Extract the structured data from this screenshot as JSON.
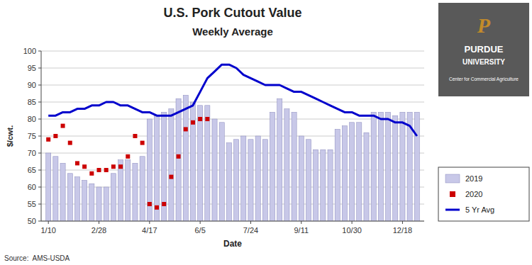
{
  "chart_data": {
    "type": "bar",
    "title": "U.S. Pork Cutout Value",
    "subtitle": "Weekly Average",
    "x_label": "Date",
    "y_label": "$/cwt.",
    "annotations": [
      "P",
      "PURDUE",
      "UNIVERSITY",
      "Center for Commercial Agriculture",
      "Source:  AMS-USDA"
    ],
    "xlim": [
      0,
      53
    ],
    "xticks": [
      {
        "value": 1,
        "label": "1/10"
      },
      {
        "value": 8,
        "label": "2/28"
      },
      {
        "value": 15,
        "label": "4/17"
      },
      {
        "value": 22,
        "label": "6/5"
      },
      {
        "value": 29,
        "label": "7/24"
      },
      {
        "value": 36,
        "label": "9/11"
      },
      {
        "value": 43,
        "label": "10/30"
      },
      {
        "value": 50,
        "label": "12/18"
      }
    ],
    "ylim": [
      50,
      100
    ],
    "yticks": [
      50,
      55,
      60,
      65,
      70,
      75,
      80,
      85,
      90,
      95,
      100
    ],
    "grid": true,
    "legend": "lower right",
    "series": [
      {
        "name": "2019",
        "type": "bar",
        "color": "#c8c8e8",
        "x": [
          1,
          2,
          3,
          4,
          5,
          6,
          7,
          8,
          9,
          10,
          11,
          12,
          13,
          14,
          15,
          16,
          17,
          18,
          19,
          20,
          21,
          22,
          23,
          24,
          25,
          26,
          27,
          28,
          29,
          30,
          31,
          32,
          33,
          34,
          35,
          36,
          37,
          38,
          39,
          40,
          41,
          42,
          43,
          44,
          45,
          46,
          47,
          48,
          49,
          50,
          51,
          52
        ],
        "values": [
          70,
          69,
          67,
          64,
          63,
          62,
          61,
          60,
          60,
          64,
          68,
          68,
          67,
          69,
          80,
          81,
          82,
          83,
          86,
          87,
          85,
          84,
          84,
          80,
          79,
          73,
          74,
          75,
          74,
          75,
          74,
          82,
          86,
          83,
          82,
          75,
          74,
          71,
          71,
          71,
          77,
          78,
          79,
          79,
          76,
          82,
          82,
          82,
          81,
          82,
          82,
          82
        ]
      },
      {
        "name": "2020",
        "type": "scatter",
        "color": "#cc0000",
        "marker": "square",
        "x": [
          1,
          2,
          3,
          4,
          5,
          6,
          7,
          8,
          9,
          10,
          11,
          12,
          13,
          14,
          15,
          16,
          17,
          18,
          19,
          20,
          21,
          22,
          23
        ],
        "values": [
          74,
          75,
          78,
          73,
          67,
          66,
          64,
          65,
          65,
          66,
          66,
          69,
          75,
          73,
          55,
          54,
          55,
          63,
          69,
          77,
          79,
          80,
          80
        ]
      },
      {
        "name": "5 Yr Avg",
        "type": "line",
        "color": "#0000cc",
        "line_style": "solid",
        "x": [
          1,
          2,
          3,
          4,
          5,
          6,
          7,
          8,
          9,
          10,
          11,
          12,
          13,
          14,
          15,
          16,
          17,
          18,
          19,
          20,
          21,
          22,
          23,
          24,
          25,
          26,
          27,
          28,
          29,
          30,
          31,
          32,
          33,
          34,
          35,
          36,
          37,
          38,
          39,
          40,
          41,
          42,
          43,
          44,
          45,
          46,
          47,
          48,
          49,
          50,
          51,
          52
        ],
        "values": [
          81,
          81,
          82,
          82,
          83,
          83,
          84,
          84,
          85,
          85,
          84,
          84,
          83,
          82,
          82,
          81,
          81,
          81,
          82,
          83,
          84,
          88,
          92,
          94,
          96,
          96,
          95,
          93,
          92,
          91,
          90,
          90,
          90,
          89,
          88,
          88,
          87,
          86,
          85,
          84,
          83,
          82,
          82,
          81,
          81,
          81,
          80,
          80,
          79,
          79,
          78,
          75
        ]
      }
    ]
  }
}
